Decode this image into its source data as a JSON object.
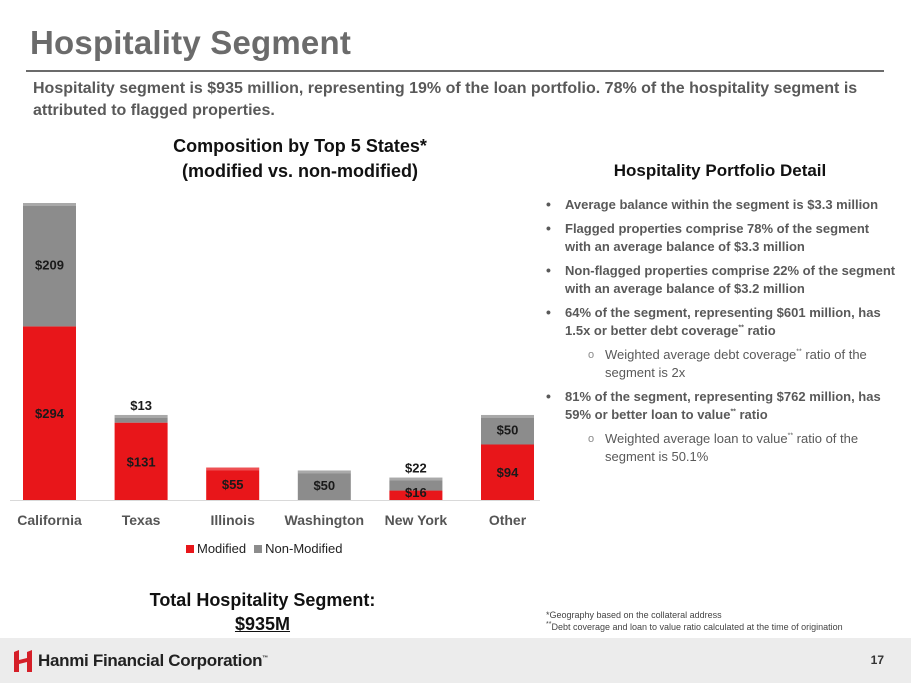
{
  "slide": {
    "title": "Hospitality Segment",
    "intro": "Hospitality segment is $935 million, representing 19% of the loan portfolio. 78% of the hospitality segment is attributed to flagged properties.",
    "page_number": "17"
  },
  "chart_data": {
    "type": "bar",
    "stacked": true,
    "title": "Composition by Top 5 States*",
    "subtitle": "(modified vs. non-modified)",
    "categories": [
      "California",
      "Texas",
      "Illinois",
      "Washington",
      "New York",
      "Other"
    ],
    "series": [
      {
        "name": "Modified",
        "values": [
          294,
          131,
          55,
          0,
          16,
          94
        ],
        "color": "#e8161a"
      },
      {
        "name": "Non-Modified",
        "values": [
          209,
          13,
          0,
          50,
          22,
          50
        ],
        "color": "#8c8c8c"
      }
    ],
    "data_labels": {
      "Modified": [
        "$294",
        "$131",
        "$55",
        "",
        "$16",
        "$94"
      ],
      "Non-Modified": [
        "$209",
        "$13",
        "",
        "$50",
        "$22",
        "$50"
      ]
    },
    "ylim": [
      0,
      503
    ],
    "legend_position": "bottom"
  },
  "total": {
    "label": "Total Hospitality Segment:",
    "amount": "$935M"
  },
  "detail": {
    "title": "Hospitality Portfolio Detail",
    "bullets": [
      {
        "text": "Average balance within the segment is $3.3 million"
      },
      {
        "text": "Flagged properties comprise 78% of the segment with an average balance of $3.3 million"
      },
      {
        "text": "Non-flagged properties comprise 22% of the segment with an average balance of $3.2 million"
      },
      {
        "text": "64% of the segment, representing $601 million, has 1.5x or better debt coverage",
        "sup": "**",
        "tail": " ratio"
      },
      {
        "sub": true,
        "text": "Weighted average debt coverage",
        "sup": "**",
        "tail": " ratio of the segment is 2x"
      },
      {
        "text": "81% of the segment, representing $762 million, has 59% or better loan to value",
        "sup": "**",
        "tail": " ratio"
      },
      {
        "sub": true,
        "text": "Weighted average loan to value",
        "sup": "**",
        "tail": " ratio of the segment is 50.1%"
      }
    ]
  },
  "footnotes": {
    "line1": "*Geography based on the collateral address",
    "line2_sup": "**",
    "line2": "Debt coverage and loan to value ratio calculated at the time of origination"
  },
  "footer": {
    "company": "Hanmi Financial Corporation",
    "tm": "™"
  },
  "colors": {
    "modified": "#e8161a",
    "non_modified": "#8c8c8c",
    "brand_red": "#d51f28"
  }
}
